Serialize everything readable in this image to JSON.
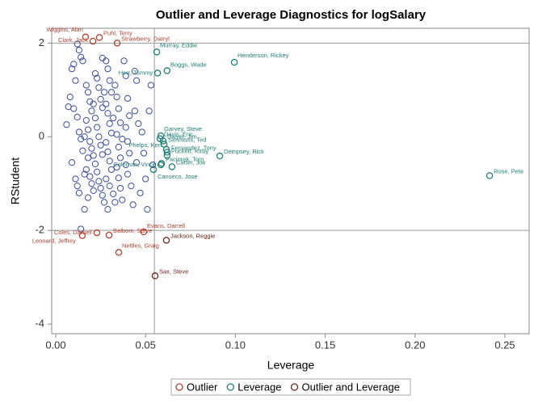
{
  "chart_data": {
    "type": "scatter",
    "title": "Outlier and Leverage Diagnostics for logSalary",
    "x_label": "Leverage",
    "y_label": "RStudent",
    "xlim": [
      -0.00225,
      0.2635
    ],
    "ylim": [
      -4.205,
      2.316
    ],
    "xticks": [
      {
        "value": 0,
        "label": "0.00"
      },
      {
        "value": 0.05,
        "label": "0.05"
      },
      {
        "value": 0.1,
        "label": "0.10"
      },
      {
        "value": 0.15,
        "label": "0.15"
      },
      {
        "value": 0.2,
        "label": "0.20"
      },
      {
        "value": 0.25,
        "label": "0.25"
      }
    ],
    "yticks": [
      2,
      0,
      -2,
      -4
    ],
    "reference_lines": {
      "x": [
        0.0549
      ],
      "y": [
        -2,
        2
      ],
      "color": "#999999"
    },
    "points": {
      "color": "#3a4d96",
      "x": [
        0.006,
        0.007,
        0.008,
        0.009,
        0.01,
        0.011,
        0.012,
        0.013,
        0.014,
        0.015,
        0.01,
        0.012,
        0.013,
        0.014,
        0.015,
        0.009,
        0.011,
        0.012,
        0.013,
        0.016,
        0.014,
        0.017,
        0.018,
        0.019,
        0.02,
        0.017,
        0.018,
        0.019,
        0.02,
        0.018,
        0.017,
        0.019,
        0.02,
        0.021,
        0.018,
        0.022,
        0.023,
        0.024,
        0.025,
        0.026,
        0.022,
        0.023,
        0.024,
        0.025,
        0.026,
        0.022,
        0.023,
        0.024,
        0.025,
        0.026,
        0.027,
        0.028,
        0.029,
        0.03,
        0.031,
        0.028,
        0.029,
        0.03,
        0.031,
        0.028,
        0.029,
        0.03,
        0.031,
        0.028,
        0.03,
        0.032,
        0.029,
        0.033,
        0.034,
        0.035,
        0.036,
        0.034,
        0.035,
        0.036,
        0.034,
        0.035,
        0.036,
        0.037,
        0.038,
        0.039,
        0.04,
        0.041,
        0.039,
        0.04,
        0.041,
        0.039,
        0.04,
        0.042,
        0.043,
        0.044,
        0.045,
        0.046,
        0.044,
        0.045,
        0.047,
        0.048,
        0.049,
        0.05,
        0.051,
        0.053,
        0.052,
        0.054,
        0.016,
        0.021,
        0.027,
        0.032,
        0.037,
        0.021,
        0.016,
        0.033,
        0.026
      ],
      "values": [
        0.26,
        0.64,
        0.85,
        1.45,
        1.55,
        1.2,
        1.98,
        1.85,
        1.7,
        1.62,
        0.6,
        0.42,
        0.1,
        -0.05,
        -0.3,
        -0.55,
        -0.9,
        -1.05,
        -1.2,
        -1.55,
        -1.97,
        1.1,
        0.95,
        0.75,
        0.55,
        0.35,
        0.15,
        -0.1,
        -0.25,
        -0.45,
        -0.7,
        -0.85,
        -1.0,
        -1.15,
        -1.3,
        1.35,
        1.25,
        1.05,
        0.8,
        0.62,
        0.4,
        0.2,
        0.0,
        -0.18,
        -0.38,
        -0.58,
        -0.75,
        -0.95,
        -1.1,
        -1.25,
        -1.4,
        1.62,
        1.45,
        1.2,
        0.95,
        0.7,
        0.5,
        0.28,
        0.08,
        -0.12,
        -0.32,
        -0.52,
        -0.7,
        -0.9,
        -1.05,
        -1.22,
        -1.55,
        1.1,
        0.85,
        0.6,
        0.3,
        0.05,
        -0.22,
        -0.45,
        -0.65,
        -0.88,
        -1.1,
        -1.35,
        1.62,
        1.3,
        0.82,
        0.45,
        0.2,
        -0.1,
        -0.35,
        -0.6,
        -0.8,
        -1.05,
        -1.45,
        1.4,
        1.2,
        0.28,
        0.55,
        -0.55,
        -1.2,
        0.1,
        -0.35,
        -0.9,
        -1.55,
        1.1,
        0.55,
        -0.6,
        0.0,
        0.7,
        0.95,
        0.4,
        -0.05,
        -0.4,
        -0.8,
        -1.4,
        1.68
      ]
    },
    "series": [
      {
        "name": "Outlier",
        "color": "#b2402f",
        "labels": [
          "Wiggins, Alan",
          "Puhl, Terry",
          "Clark, Jack",
          "Strawberry, Darryl",
          "Evans, Darrell",
          "Coles, Darnell",
          "Leonard, Jeffrey",
          "Balboni, Steve",
          "Nettles, Graig"
        ],
        "x": [
          0.0166,
          0.0243,
          0.0207,
          0.0342,
          0.049,
          0.0229,
          0.0148,
          0.0297,
          0.0351
        ],
        "values": [
          2.13,
          2.12,
          2.04,
          2.0,
          -2.03,
          -2.05,
          -2.11,
          -2.1,
          -2.47
        ]
      },
      {
        "name": "Leverage",
        "color": "#1f7f74",
        "labels": [
          "Murray, Eddie",
          "Henderson, Rickey",
          "Boggs, Wade",
          "Herr, Tommy",
          "Garvey, Steve",
          "Davis, Eric",
          "Dwyer, Jim",
          "Simmons, Ted",
          "Phelps, Ken",
          "Fernandez, Tony",
          "Dempsey, Rick",
          "Puckett, Kirby",
          "Paciorek, Tom",
          "Coleman, Vince",
          "Carter, Joe",
          "Canseco, Jose",
          "Rose, Pete"
        ],
        "x": [
          0.0562,
          0.0994,
          0.062,
          0.0567,
          0.0585,
          0.058,
          0.0598,
          0.0603,
          0.0616,
          0.062,
          0.0913,
          0.062,
          0.0589,
          0.0585,
          0.0647,
          0.0544,
          0.2415
        ],
        "values": [
          1.81,
          1.59,
          1.41,
          1.36,
          0.02,
          -0.04,
          -0.09,
          -0.16,
          -0.27,
          -0.33,
          -0.41,
          -0.4,
          -0.57,
          -0.6,
          -0.64,
          -0.7,
          -0.83
        ]
      },
      {
        "name": "Outlier and Leverage",
        "color": "#6e2318",
        "labels": [
          "Jackson, Reggie",
          "Sax, Steve"
        ],
        "x": [
          0.0616,
          0.0553
        ],
        "values": [
          -2.21,
          -2.97
        ]
      }
    ]
  }
}
